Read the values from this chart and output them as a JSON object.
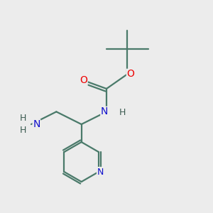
{
  "background_color": "#ececec",
  "bond_color": "#4a7a6a",
  "bond_color_dark": "#3a5a50",
  "atom_colors": {
    "O": "#ee0000",
    "N": "#1010cc",
    "C": "#3a5a50",
    "H": "#3a5a50"
  },
  "figsize": [
    3.0,
    3.0
  ],
  "dpi": 100,
  "lw": 1.6
}
